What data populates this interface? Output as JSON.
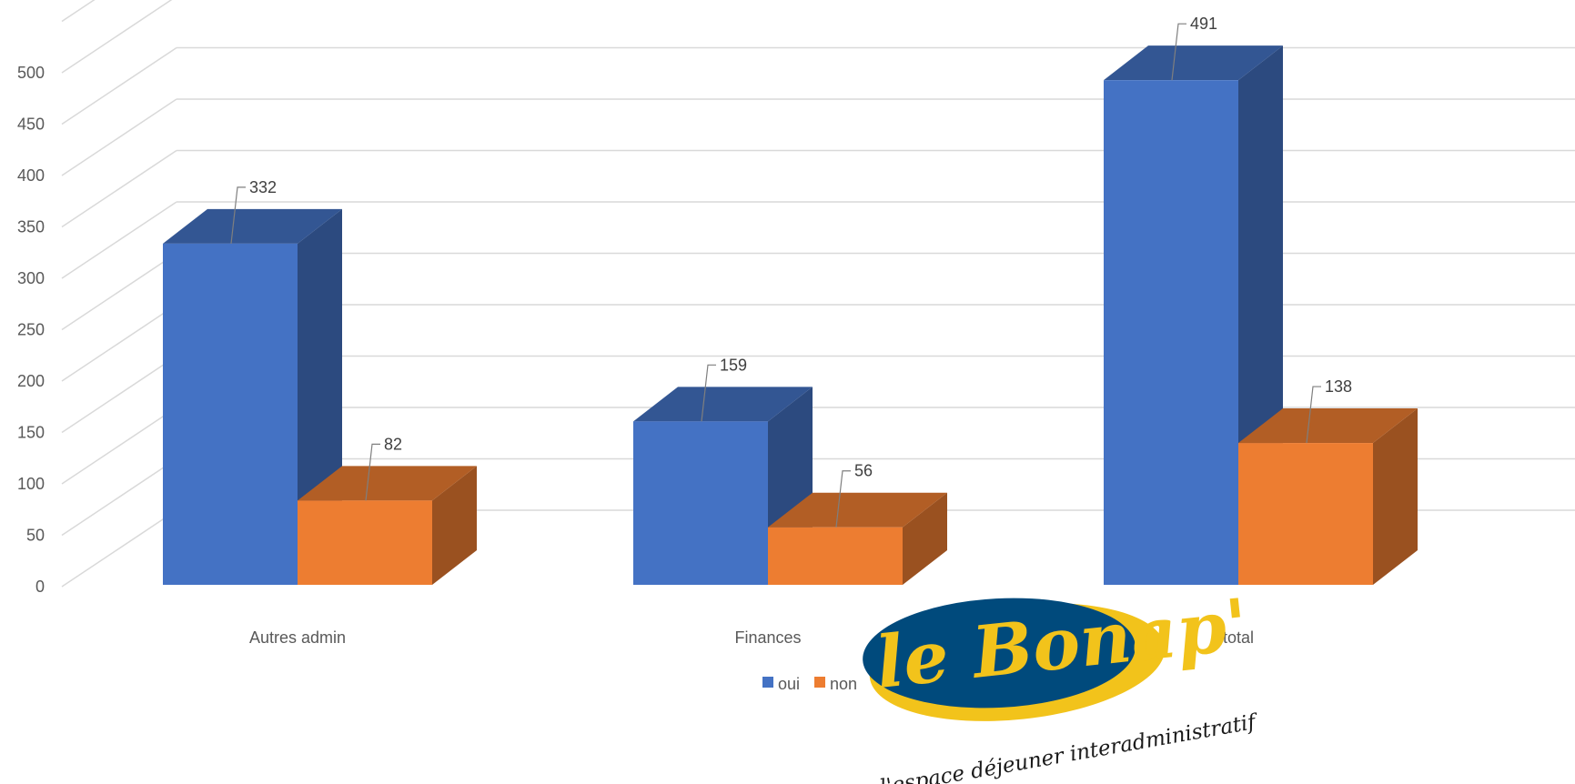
{
  "chart_data": {
    "type": "bar",
    "categories": [
      "Autres admin",
      "Finances",
      "total"
    ],
    "series": [
      {
        "name": "oui",
        "values": [
          332,
          159,
          491
        ]
      },
      {
        "name": "non",
        "values": [
          82,
          56,
          138
        ]
      }
    ],
    "ylim": [
      0,
      500
    ],
    "yticks": [
      "0",
      "50",
      "100",
      "150",
      "200",
      "250",
      "300",
      "350",
      "400",
      "450",
      "500"
    ],
    "grid": true,
    "legend_position": "bottom",
    "three_d": true
  },
  "colors": {
    "oui": "#4472c4",
    "non": "#ed7d31",
    "grid": "#d9d9d9"
  },
  "logo": {
    "main": "le Bonap'",
    "tagline": "l'espace déjeuner interadministratif"
  }
}
